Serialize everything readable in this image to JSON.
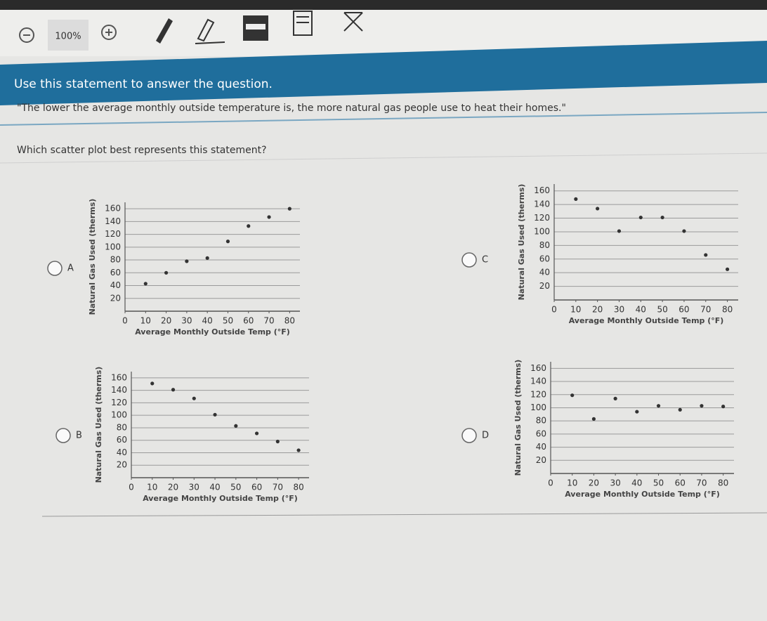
{
  "toolbar": {
    "zoom": "100%"
  },
  "banner": "Use this statement to answer the question.",
  "quote": "\"The lower the average monthly outside temperature is, the more natural gas people use to heat their homes.\"",
  "question": "Which scatter plot best represents this statement?",
  "options": [
    {
      "letter": "A",
      "chart": {
        "type": "scatter",
        "x_label": "Average Monthly Outside Temp (°F)",
        "y_label": "Natural Gas Used (therms)",
        "x": [
          10,
          20,
          30,
          40,
          50,
          60,
          70,
          80
        ],
        "y": [
          43,
          60,
          78,
          83,
          109,
          133,
          147,
          160
        ],
        "xlim": [
          0,
          85
        ],
        "ylim": [
          0,
          170
        ],
        "xticks": [
          0,
          10,
          20,
          30,
          40,
          50,
          60,
          70,
          80
        ],
        "yticks": [
          20,
          40,
          60,
          80,
          100,
          120,
          140,
          160
        ],
        "color": "#333333",
        "grid": true
      }
    },
    {
      "letter": "B",
      "chart": {
        "type": "scatter",
        "x_label": "Average Monthly Outside Temp (°F)",
        "y_label": "Natural Gas Used (therms)",
        "x": [
          10,
          20,
          30,
          40,
          50,
          60,
          70,
          80
        ],
        "y": [
          151,
          141,
          127,
          101,
          83,
          71,
          58,
          44
        ],
        "xlim": [
          0,
          85
        ],
        "ylim": [
          0,
          170
        ],
        "xticks": [
          0,
          10,
          20,
          30,
          40,
          50,
          60,
          70,
          80
        ],
        "yticks": [
          20,
          40,
          60,
          80,
          100,
          120,
          140,
          160
        ],
        "color": "#333333",
        "grid": true
      }
    },
    {
      "letter": "C",
      "chart": {
        "type": "scatter",
        "x_label": "Average Monthly Outside Temp (°F)",
        "y_label": "Natural Gas Used (therms)",
        "x": [
          10,
          20,
          30,
          40,
          50,
          60,
          70,
          80
        ],
        "y": [
          148,
          134,
          101,
          121,
          121,
          101,
          66,
          45
        ],
        "xlim": [
          0,
          85
        ],
        "ylim": [
          0,
          170
        ],
        "xticks": [
          0,
          10,
          20,
          30,
          40,
          50,
          60,
          70,
          80
        ],
        "yticks": [
          20,
          40,
          60,
          80,
          100,
          120,
          140,
          160
        ],
        "color": "#333333",
        "grid": true
      }
    },
    {
      "letter": "D",
      "chart": {
        "type": "scatter",
        "x_label": "Average Monthly Outside Temp (°F)",
        "y_label": "Natural Gas Used (therms)",
        "x": [
          10,
          20,
          30,
          40,
          50,
          60,
          70,
          80
        ],
        "y": [
          119,
          83,
          114,
          94,
          103,
          97,
          103,
          102
        ],
        "xlim": [
          0,
          85
        ],
        "ylim": [
          0,
          170
        ],
        "xticks": [
          0,
          10,
          20,
          30,
          40,
          50,
          60,
          70,
          80
        ],
        "yticks": [
          20,
          40,
          60,
          80,
          100,
          120,
          140,
          160
        ],
        "color": "#333333",
        "grid": true
      }
    }
  ]
}
